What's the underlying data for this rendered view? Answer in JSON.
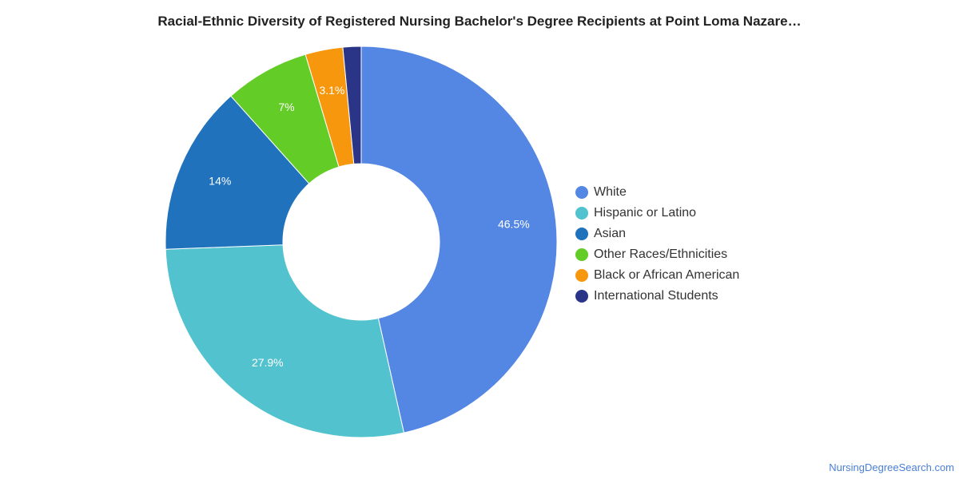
{
  "chart_data": {
    "type": "pie",
    "variant": "donut",
    "title": "Racial-Ethnic Diversity of Registered Nursing Bachelor's Degree Recipients at Point Loma Nazare…",
    "legend_position": "right",
    "slices": [
      {
        "label": "White",
        "value": 46.5,
        "value_label": "46.5%",
        "color": "#5486e3"
      },
      {
        "label": "Hispanic or Latino",
        "value": 27.9,
        "value_label": "27.9%",
        "color": "#52c2cf"
      },
      {
        "label": "Asian",
        "value": 14.0,
        "value_label": "14%",
        "color": "#1f72bb"
      },
      {
        "label": "Other Races/Ethnicities",
        "value": 7.0,
        "value_label": "7%",
        "color": "#64cc27"
      },
      {
        "label": "Black or African American",
        "value": 3.1,
        "value_label": "3.1%",
        "color": "#f7970d"
      },
      {
        "label": "International Students",
        "value": 1.5,
        "value_label": "",
        "color": "#2a3588"
      }
    ]
  },
  "watermark": "NursingDegreeSearch.com"
}
